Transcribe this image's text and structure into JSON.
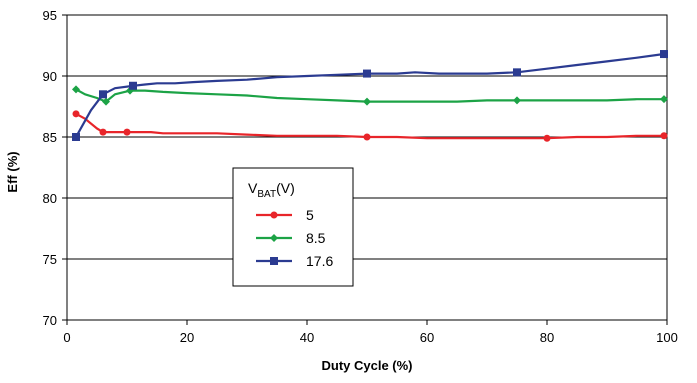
{
  "chart_data": {
    "type": "line",
    "title": "",
    "xlabel": "Duty Cycle (%)",
    "ylabel": "Eff (%)",
    "xlim": [
      0,
      100
    ],
    "ylim": [
      70,
      95
    ],
    "xticks": [
      0,
      20,
      40,
      60,
      80,
      100
    ],
    "yticks": [
      70,
      75,
      80,
      85,
      90,
      95
    ],
    "grid": "horizontal",
    "legend": {
      "title_main": "V",
      "title_sub": "BAT",
      "title_unit": "(V)",
      "placement": "center-left"
    },
    "series": [
      {
        "name": "5",
        "color": "#e8252a",
        "marker": "circle",
        "x": [
          1.5,
          3,
          5,
          6,
          8,
          10,
          12,
          14,
          16,
          20,
          25,
          30,
          35,
          40,
          45,
          50,
          55,
          60,
          65,
          70,
          75,
          80,
          85,
          90,
          95,
          99.5
        ],
        "y": [
          86.9,
          86.5,
          85.7,
          85.4,
          85.4,
          85.4,
          85.4,
          85.4,
          85.3,
          85.3,
          85.3,
          85.2,
          85.1,
          85.1,
          85.1,
          85.0,
          85.0,
          84.9,
          84.9,
          84.9,
          84.9,
          84.9,
          85.0,
          85.0,
          85.1,
          85.1
        ]
      },
      {
        "name": "8.5",
        "color": "#1ca346",
        "marker": "diamond",
        "x": [
          1.5,
          3,
          5,
          6.5,
          8,
          10.5,
          13,
          16,
          20,
          25,
          30,
          35,
          40,
          45,
          50,
          55,
          60,
          65,
          70,
          75,
          80,
          85,
          90,
          95,
          99.5
        ],
        "y": [
          88.9,
          88.5,
          88.2,
          87.9,
          88.5,
          88.8,
          88.8,
          88.7,
          88.6,
          88.5,
          88.4,
          88.2,
          88.1,
          88.0,
          87.9,
          87.9,
          87.9,
          87.9,
          88.0,
          88.0,
          88.0,
          88.0,
          88.0,
          88.1,
          88.1
        ]
      },
      {
        "name": "17.6",
        "color": "#2b3b91",
        "marker": "square",
        "x": [
          1.5,
          4,
          6,
          8,
          11,
          13,
          15,
          18,
          21,
          25,
          30,
          35,
          40,
          45,
          50,
          55,
          58,
          62,
          66,
          70,
          75,
          80,
          85,
          90,
          95,
          99.5
        ],
        "y": [
          85.0,
          87.2,
          88.5,
          89.0,
          89.2,
          89.3,
          89.4,
          89.4,
          89.5,
          89.6,
          89.7,
          89.9,
          90.0,
          90.1,
          90.2,
          90.2,
          90.3,
          90.2,
          90.2,
          90.2,
          90.3,
          90.6,
          90.9,
          91.2,
          91.5,
          91.8
        ]
      }
    ]
  }
}
